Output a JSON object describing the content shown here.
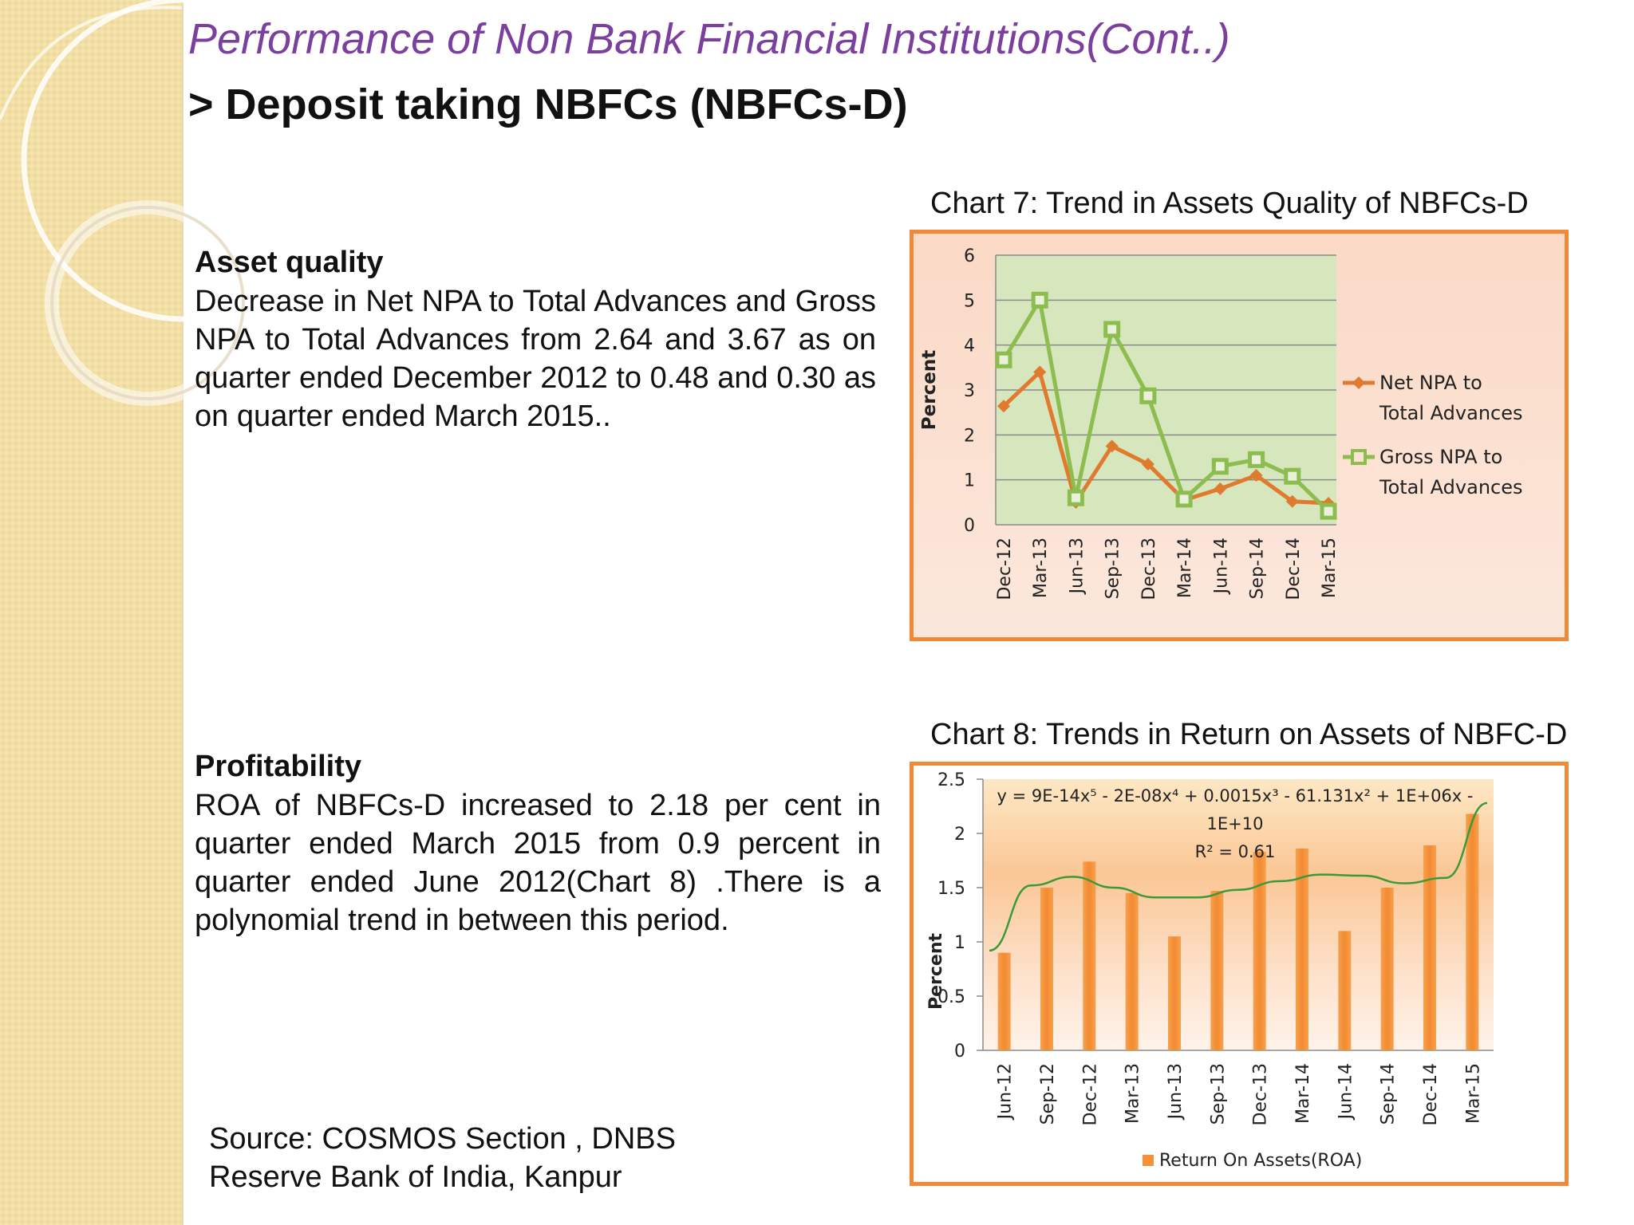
{
  "slide": {
    "title": "Performance of Non Bank Financial Institutions(Cont..)",
    "subtitle": "> Deposit taking NBFCs (NBFCs-D)"
  },
  "asset_quality": {
    "heading": "Asset quality",
    "text": "Decrease in Net NPA to Total Advances and Gross NPA to Total Advances from 2.64 and 3.67 as on quarter ended December 2012 to 0.48 and 0.30 as on quarter ended March 2015.."
  },
  "profitability": {
    "heading": "Profitability",
    "text": "ROA of NBFCs-D increased to 2.18 per cent in quarter ended March 2015 from 0.9 percent in quarter ended June 2012(Chart 8) .There is a polynomial trend in between this period."
  },
  "source": {
    "line1": "Source:  COSMOS Section , DNBS",
    "line2": "Reserve Bank of India, Kanpur"
  },
  "colors": {
    "net_npa": "#e07a2e",
    "gross_npa": "#8dbd4e",
    "roa_bar": "#f4913a",
    "trendline": "#3a9a3a",
    "border": "#f08a38",
    "plot7_bg": "#d6e6bd"
  },
  "chart_data": [
    {
      "type": "line",
      "title": "Chart 7: Trend in Assets Quality of NBFCs-D",
      "ylabel": "Percent",
      "xlabel": "",
      "ylim": [
        0,
        6
      ],
      "yticks": [
        "0",
        "1",
        "2",
        "3",
        "4",
        "5",
        "6"
      ],
      "grid": true,
      "legend_position": "right",
      "categories": [
        "Dec-12",
        "Mar-13",
        "Jun-13",
        "Sep-13",
        "Dec-13",
        "Mar-14",
        "Jun-14",
        "Sep-14",
        "Dec-14",
        "Mar-15"
      ],
      "series": [
        {
          "name": "Net NPA to Total Advances",
          "legend": [
            "Net NPA to",
            "Total Advances"
          ],
          "marker": "diamond",
          "values": [
            2.64,
            3.4,
            0.5,
            1.75,
            1.35,
            0.55,
            0.8,
            1.1,
            0.52,
            0.48
          ]
        },
        {
          "name": "Gross NPA to Total Advances",
          "legend": [
            "Gross NPA to",
            "Total Advances"
          ],
          "marker": "square",
          "values": [
            3.67,
            5.0,
            0.6,
            4.35,
            2.87,
            0.57,
            1.3,
            1.45,
            1.08,
            0.3
          ]
        }
      ]
    },
    {
      "type": "bar",
      "title": "Chart 8: Trends in Return on Assets of NBFC-D",
      "ylabel": "Percent",
      "xlabel": "",
      "ylim": [
        0,
        2.5
      ],
      "yticks": [
        "0",
        "0.5",
        "1",
        "1.5",
        "2",
        "2.5"
      ],
      "legend_position": "bottom",
      "categories": [
        "Jun-12",
        "Sep-12",
        "Dec-12",
        "Mar-13",
        "Jun-13",
        "Sep-13",
        "Dec-13",
        "Mar-14",
        "Jun-14",
        "Sep-14",
        "Dec-14",
        "Mar-15"
      ],
      "series": [
        {
          "name": "Return On Assets(ROA)",
          "values": [
            0.9,
            1.5,
            1.74,
            1.45,
            1.05,
            1.47,
            1.83,
            1.86,
            1.1,
            1.5,
            1.89,
            2.18
          ]
        }
      ],
      "trendline": {
        "type": "polynomial",
        "values": [
          0.92,
          1.52,
          1.6,
          1.5,
          1.41,
          1.41,
          1.48,
          1.56,
          1.62,
          1.61,
          1.54,
          1.59,
          2.28
        ],
        "equation_lines": [
          "y = 9E-14x⁵ - 2E-08x⁴ + 0.0015x³ - 61.131x² + 1E+06x -",
          "1E+10"
        ],
        "r2": "R² = 0.61"
      }
    }
  ]
}
